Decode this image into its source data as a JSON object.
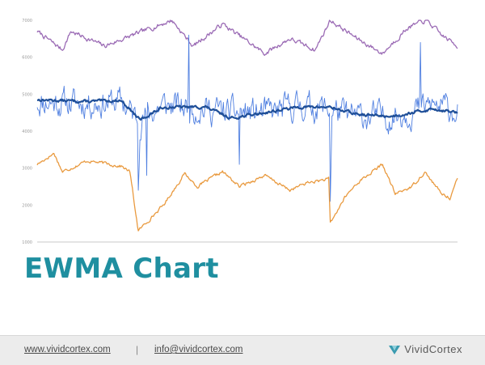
{
  "slide": {
    "title": "EWMA Chart"
  },
  "footer": {
    "website": "www.vividcortex.com",
    "separator": "|",
    "email": "info@vividcortex.com",
    "brand_name": "VividCortex",
    "brand_icon": "vividcortex-logo-icon"
  },
  "colors": {
    "title": "#1f8fa0",
    "purple": "#9b6bb5",
    "blue": "#4f7fe0",
    "ewma": "#1f4f98",
    "orange": "#e99a3f"
  },
  "chart_data": {
    "type": "line",
    "title": "",
    "xlabel": "",
    "ylabel": "",
    "ylim": [
      1000,
      7000
    ],
    "yticks": [
      "7000",
      "6000",
      "5000",
      "4000",
      "3000",
      "2000",
      "1000"
    ],
    "grid": false,
    "legend": "none",
    "points_per_series": 500,
    "series": [
      {
        "color": "#9b6bb5",
        "seed": 7,
        "noise": 100,
        "base": [
          [
            0,
            6700
          ],
          [
            30,
            6200
          ],
          [
            40,
            6700
          ],
          [
            80,
            6300
          ],
          [
            120,
            6650
          ],
          [
            160,
            7000
          ],
          [
            185,
            6300
          ],
          [
            220,
            6900
          ],
          [
            270,
            6100
          ],
          [
            300,
            6500
          ],
          [
            330,
            6200
          ],
          [
            348,
            7000
          ],
          [
            380,
            6500
          ],
          [
            410,
            6100
          ],
          [
            440,
            6800
          ],
          [
            462,
            7000
          ],
          [
            480,
            6600
          ],
          [
            499,
            6300
          ]
        ]
      },
      {
        "color": "#4f7fe0",
        "seed": 11,
        "noise": 600,
        "width": 0.9,
        "base": [
          [
            0,
            4800
          ],
          [
            60,
            4750
          ],
          [
            100,
            4800
          ],
          [
            120,
            4300
          ],
          [
            150,
            4700
          ],
          [
            200,
            4600
          ],
          [
            230,
            4500
          ],
          [
            280,
            4500
          ],
          [
            310,
            4700
          ],
          [
            348,
            4600
          ],
          [
            370,
            4400
          ],
          [
            420,
            4400
          ],
          [
            470,
            4700
          ],
          [
            499,
            4550
          ]
        ],
        "spikes": [
          [
            120,
            2400
          ],
          [
            121,
            3000
          ],
          [
            348,
            2100
          ],
          [
            349,
            3300
          ],
          [
            240,
            3100
          ],
          [
            180,
            6600
          ],
          [
            130,
            2800
          ],
          [
            455,
            6400
          ]
        ]
      },
      {
        "color": "#1f4f98",
        "seed": 13,
        "noise": 60,
        "width": 2.2,
        "base": [
          [
            0,
            4850
          ],
          [
            60,
            4800
          ],
          [
            100,
            4830
          ],
          [
            122,
            4300
          ],
          [
            150,
            4650
          ],
          [
            200,
            4650
          ],
          [
            230,
            4350
          ],
          [
            270,
            4500
          ],
          [
            310,
            4650
          ],
          [
            348,
            4650
          ],
          [
            380,
            4450
          ],
          [
            420,
            4400
          ],
          [
            470,
            4600
          ],
          [
            499,
            4500
          ]
        ]
      },
      {
        "color": "#e99a3f",
        "seed": 17,
        "noise": 70,
        "base": [
          [
            0,
            3100
          ],
          [
            20,
            3400
          ],
          [
            30,
            2900
          ],
          [
            60,
            3200
          ],
          [
            100,
            3050
          ],
          [
            110,
            2900
          ],
          [
            120,
            1300
          ],
          [
            150,
            2000
          ],
          [
            175,
            2850
          ],
          [
            190,
            2500
          ],
          [
            220,
            2900
          ],
          [
            240,
            2500
          ],
          [
            270,
            2800
          ],
          [
            300,
            2400
          ],
          [
            320,
            2600
          ],
          [
            346,
            2700
          ],
          [
            348,
            1500
          ],
          [
            365,
            2200
          ],
          [
            380,
            2600
          ],
          [
            410,
            3100
          ],
          [
            425,
            2300
          ],
          [
            445,
            2500
          ],
          [
            460,
            2900
          ],
          [
            480,
            2300
          ],
          [
            490,
            2200
          ],
          [
            499,
            2700
          ]
        ]
      }
    ]
  }
}
